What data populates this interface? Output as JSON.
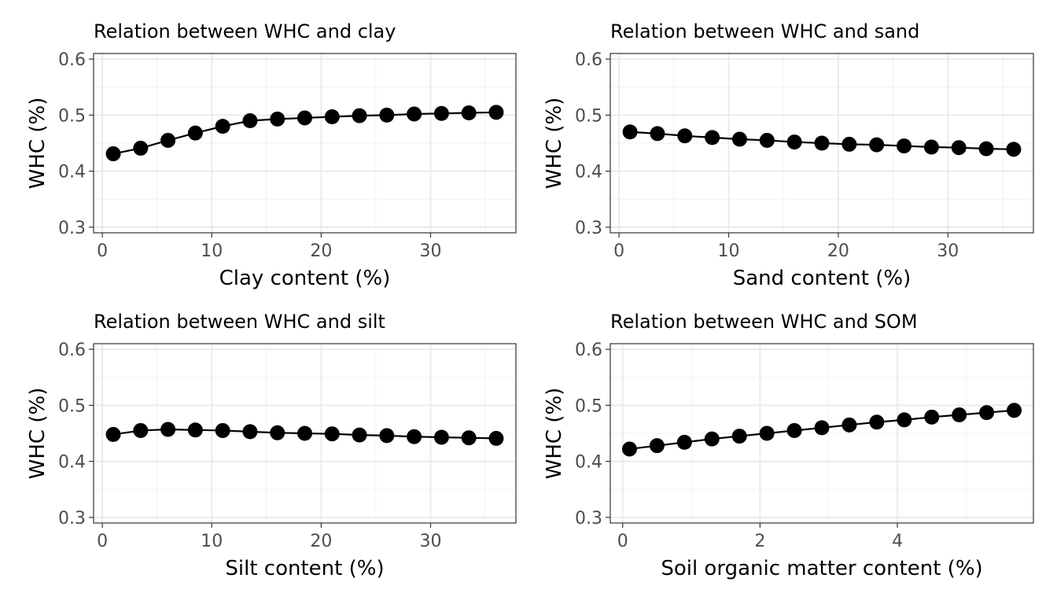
{
  "chart_data": [
    {
      "type": "line",
      "title": "Relation between WHC and clay",
      "xlabel": "Clay content (%)",
      "ylabel": "WHC (%)",
      "xlim": [
        -0.8,
        37.8
      ],
      "ylim": [
        0.29,
        0.61
      ],
      "x_ticks": [
        0,
        10,
        20,
        30
      ],
      "y_ticks": [
        0.3,
        0.4,
        0.5,
        0.6
      ],
      "y_tick_labels": [
        "0.3",
        "0.4",
        "0.5",
        "0.6"
      ],
      "grid": true,
      "x": [
        1,
        3.5,
        6,
        8.5,
        11,
        13.5,
        16,
        18.5,
        21,
        23.5,
        26,
        28.5,
        31,
        33.5,
        36
      ],
      "y": [
        0.431,
        0.441,
        0.455,
        0.468,
        0.48,
        0.49,
        0.493,
        0.495,
        0.497,
        0.499,
        0.5,
        0.502,
        0.503,
        0.504,
        0.505
      ]
    },
    {
      "type": "line",
      "title": "Relation between WHC and sand",
      "xlabel": "Sand content (%)",
      "ylabel": "WHC (%)",
      "xlim": [
        -0.8,
        37.8
      ],
      "ylim": [
        0.29,
        0.61
      ],
      "x_ticks": [
        0,
        10,
        20,
        30
      ],
      "y_ticks": [
        0.3,
        0.4,
        0.5,
        0.6
      ],
      "y_tick_labels": [
        "0.3",
        "0.4",
        "0.5",
        "0.6"
      ],
      "grid": true,
      "x": [
        1,
        3.5,
        6,
        8.5,
        11,
        13.5,
        16,
        18.5,
        21,
        23.5,
        26,
        28.5,
        31,
        33.5,
        36
      ],
      "y": [
        0.47,
        0.467,
        0.463,
        0.46,
        0.457,
        0.455,
        0.452,
        0.45,
        0.448,
        0.447,
        0.445,
        0.443,
        0.442,
        0.44,
        0.439
      ]
    },
    {
      "type": "line",
      "title": "Relation between WHC and silt",
      "xlabel": "Silt content (%)",
      "ylabel": "WHC (%)",
      "xlim": [
        -0.8,
        37.8
      ],
      "ylim": [
        0.29,
        0.61
      ],
      "x_ticks": [
        0,
        10,
        20,
        30
      ],
      "y_ticks": [
        0.3,
        0.4,
        0.5,
        0.6
      ],
      "y_tick_labels": [
        "0.3",
        "0.4",
        "0.5",
        "0.6"
      ],
      "grid": true,
      "x": [
        1,
        3.5,
        6,
        8.5,
        11,
        13.5,
        16,
        18.5,
        21,
        23.5,
        26,
        28.5,
        31,
        33.5,
        36
      ],
      "y": [
        0.448,
        0.455,
        0.457,
        0.456,
        0.455,
        0.453,
        0.451,
        0.45,
        0.449,
        0.447,
        0.446,
        0.444,
        0.443,
        0.442,
        0.441
      ]
    },
    {
      "type": "line",
      "title": "Relation between WHC and SOM",
      "xlabel": "Soil organic matter content (%)",
      "ylabel": "WHC (%)",
      "xlim": [
        -0.18,
        5.98
      ],
      "ylim": [
        0.29,
        0.61
      ],
      "x_ticks": [
        0,
        2,
        4
      ],
      "y_ticks": [
        0.3,
        0.4,
        0.5,
        0.6
      ],
      "y_tick_labels": [
        "0.3",
        "0.4",
        "0.5",
        "0.6"
      ],
      "grid": true,
      "x": [
        0.1,
        0.5,
        0.9,
        1.3,
        1.7,
        2.1,
        2.5,
        2.9,
        3.3,
        3.7,
        4.1,
        4.5,
        4.9,
        5.3,
        5.7
      ],
      "y": [
        0.422,
        0.428,
        0.434,
        0.44,
        0.445,
        0.45,
        0.455,
        0.46,
        0.465,
        0.47,
        0.474,
        0.479,
        0.483,
        0.487,
        0.491
      ]
    }
  ]
}
